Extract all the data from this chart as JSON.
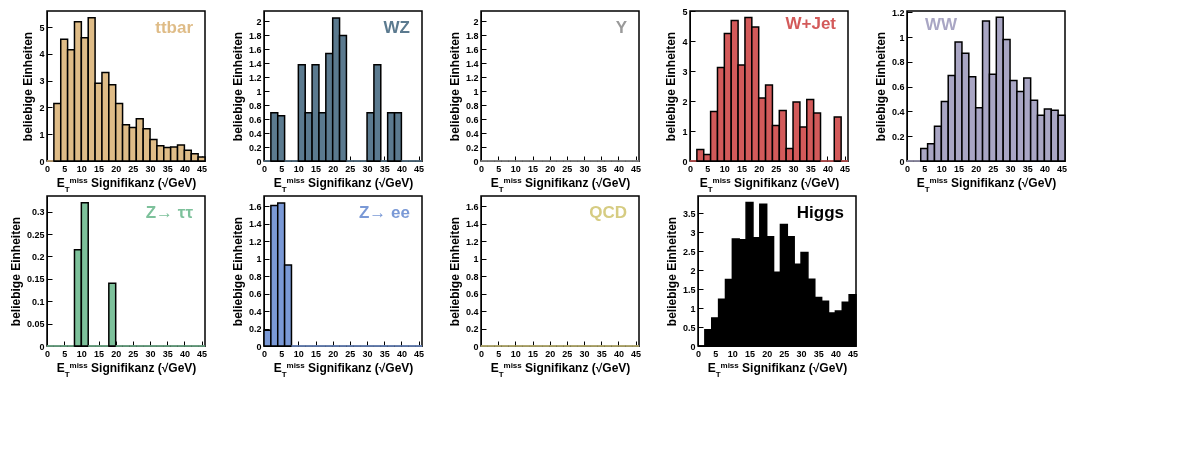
{
  "chart_data": [
    {
      "type": "histogram",
      "title": "ttbar",
      "xlabel": "E$_{T}$$^{miss}$ Signifikanz (√GeV)",
      "ylabel": "beliebige Einheiten",
      "color": "#dfbc87",
      "bins": [
        0,
        2,
        4,
        6,
        8,
        10,
        12,
        14,
        16,
        18,
        20,
        22,
        24,
        26,
        28,
        30,
        32,
        34,
        36,
        38,
        40,
        42,
        44,
        46
      ],
      "values": [
        0,
        2.15,
        4.55,
        4.15,
        5.2,
        4.6,
        5.35,
        2.9,
        3.3,
        2.85,
        2.15,
        1.35,
        1.25,
        1.58,
        1.2,
        0.8,
        0.57,
        0.5,
        0.52,
        0.6,
        0.4,
        0.27,
        0.15
      ],
      "xlim": [
        0,
        46
      ],
      "xticks": [
        0,
        5,
        10,
        15,
        20,
        25,
        30,
        35,
        40,
        45
      ],
      "ylim": [
        0,
        5.6
      ],
      "yticks": [
        0,
        1,
        2,
        3,
        4,
        5
      ]
    },
    {
      "type": "histogram",
      "title": "WZ",
      "xlabel": "E$_{T}$$^{miss}$ Signifikanz (√GeV)",
      "ylabel": "beliebige Einheiten",
      "color": "#5b7a8f",
      "bins": [
        0,
        2,
        4,
        6,
        8,
        10,
        12,
        14,
        16,
        18,
        20,
        22,
        24,
        26,
        28,
        30,
        32,
        34,
        36,
        38,
        40,
        42,
        44,
        46
      ],
      "values": [
        0,
        0.69,
        0.65,
        0,
        0,
        1.38,
        0.69,
        1.38,
        0.69,
        1.54,
        2.05,
        1.8,
        0,
        0,
        0,
        0.69,
        1.38,
        0,
        0.69,
        0.69,
        0,
        0,
        0
      ],
      "xlim": [
        0,
        46
      ],
      "xticks": [
        0,
        5,
        10,
        15,
        20,
        25,
        30,
        35,
        40,
        45
      ],
      "ylim": [
        0,
        2.15
      ],
      "yticks": [
        0,
        0.2,
        0.4,
        0.6,
        0.8,
        1,
        1.2,
        1.4,
        1.6,
        1.8,
        2
      ]
    },
    {
      "type": "histogram",
      "title": "Υ",
      "xlabel": "E$_{T}$$^{miss}$ Signifikanz (√GeV)",
      "ylabel": "beliebige Einheiten",
      "color": "#9a9a9a",
      "bins": [
        0,
        2,
        4,
        6,
        8,
        10,
        12,
        14,
        16,
        18,
        20,
        22,
        24,
        26,
        28,
        30,
        32,
        34,
        36,
        38,
        40,
        42,
        44,
        46
      ],
      "values": [
        0,
        0,
        0,
        0,
        0,
        0,
        0,
        0,
        0,
        0,
        0,
        0,
        0,
        0,
        0,
        0,
        0,
        0,
        0,
        0,
        0,
        0,
        0
      ],
      "xlim": [
        0,
        46
      ],
      "xticks": [
        0,
        5,
        10,
        15,
        20,
        25,
        30,
        35,
        40,
        45
      ],
      "ylim": [
        0,
        2.15
      ],
      "yticks": [
        0,
        0.2,
        0.4,
        0.6,
        0.8,
        1,
        1.2,
        1.4,
        1.6,
        1.8,
        2
      ]
    },
    {
      "type": "histogram",
      "title": "W+Jet",
      "xlabel": "E$_{T}$$^{miss}$ Signifikanz (√GeV)",
      "ylabel": "beliebige Einheiten",
      "color": "#d35a5a",
      "bins": [
        0,
        2,
        4,
        6,
        8,
        10,
        12,
        14,
        16,
        18,
        20,
        22,
        24,
        26,
        28,
        30,
        32,
        34,
        36,
        38,
        40,
        42,
        44,
        46
      ],
      "values": [
        0,
        0.38,
        0.22,
        1.65,
        3.12,
        4.25,
        4.68,
        3.2,
        4.78,
        4.47,
        2.1,
        2.53,
        1.18,
        1.68,
        0.42,
        1.97,
        1.13,
        2.05,
        1.6,
        0,
        0,
        1.47,
        0
      ],
      "xlim": [
        0,
        46
      ],
      "xticks": [
        0,
        5,
        10,
        15,
        20,
        25,
        30,
        35,
        40,
        45
      ],
      "ylim": [
        0,
        5
      ],
      "yticks": [
        0,
        1,
        2,
        3,
        4,
        5
      ]
    },
    {
      "type": "histogram",
      "title": "WW",
      "xlabel": "E$_{T}$$^{miss}$ Signifikanz (√GeV)",
      "ylabel": "beliebige Einheiten",
      "color": "#a9a6c4",
      "bins": [
        0,
        2,
        4,
        6,
        8,
        10,
        12,
        14,
        16,
        18,
        20,
        22,
        24,
        26,
        28,
        30,
        32,
        34,
        36,
        38,
        40,
        42,
        44,
        46
      ],
      "values": [
        0,
        0,
        0.1,
        0.14,
        0.28,
        0.48,
        0.69,
        0.96,
        0.87,
        0.68,
        0.43,
        1.13,
        0.7,
        1.16,
        0.98,
        0.65,
        0.56,
        0.67,
        0.49,
        0.37,
        0.42,
        0.41,
        0.37
      ],
      "xlim": [
        0,
        46
      ],
      "xticks": [
        0,
        5,
        10,
        15,
        20,
        25,
        30,
        35,
        40,
        45
      ],
      "ylim": [
        0,
        1.21
      ],
      "yticks": [
        0,
        0.2,
        0.4,
        0.6,
        0.8,
        1,
        1.2
      ]
    },
    {
      "type": "histogram",
      "title": "Z→ ττ",
      "xlabel": "E$_{T}$$^{miss}$ Signifikanz (√GeV)",
      "ylabel": "beliebige Einheiten",
      "color": "#7dc19b",
      "bins": [
        0,
        2,
        4,
        6,
        8,
        10,
        12,
        14,
        16,
        18,
        20,
        22,
        24,
        26,
        28,
        30,
        32,
        34,
        36,
        38,
        40,
        42,
        44,
        46
      ],
      "values": [
        0,
        0,
        0,
        0,
        0.215,
        0.32,
        0,
        0,
        0,
        0.14,
        0,
        0,
        0,
        0,
        0,
        0,
        0,
        0,
        0,
        0,
        0,
        0,
        0
      ],
      "xlim": [
        0,
        46
      ],
      "xticks": [
        0,
        5,
        10,
        15,
        20,
        25,
        30,
        35,
        40,
        45
      ],
      "ylim": [
        0,
        0.335
      ],
      "yticks": [
        0,
        0.05,
        0.1,
        0.15,
        0.2,
        0.25,
        0.3
      ]
    },
    {
      "type": "histogram",
      "title": "Z→ ee",
      "xlabel": "E$_{T}$$^{miss}$ Signifikanz (√GeV)",
      "ylabel": "beliebige Einheiten",
      "color": "#7a99d6",
      "bins": [
        0,
        2,
        4,
        6,
        8,
        10,
        12,
        14,
        16,
        18,
        20,
        22,
        24,
        26,
        28,
        30,
        32,
        34,
        36,
        38,
        40,
        42,
        44,
        46
      ],
      "values": [
        0.18,
        1.61,
        1.64,
        0.93,
        0,
        0,
        0,
        0,
        0,
        0,
        0,
        0,
        0,
        0,
        0,
        0,
        0,
        0,
        0,
        0,
        0,
        0,
        0
      ],
      "xlim": [
        0,
        46
      ],
      "xticks": [
        0,
        5,
        10,
        15,
        20,
        25,
        30,
        35,
        40,
        45
      ],
      "ylim": [
        0,
        1.72
      ],
      "yticks": [
        0,
        0.2,
        0.4,
        0.6,
        0.8,
        1,
        1.2,
        1.4,
        1.6
      ]
    },
    {
      "type": "histogram",
      "title": "QCD",
      "xlabel": "E$_{T}$$^{miss}$ Signifikanz (√GeV)",
      "ylabel": "beliebige Einheiten",
      "color": "#d6cc82",
      "bins": [
        0,
        2,
        4,
        6,
        8,
        10,
        12,
        14,
        16,
        18,
        20,
        22,
        24,
        26,
        28,
        30,
        32,
        34,
        36,
        38,
        40,
        42,
        44,
        46
      ],
      "values": [
        0,
        0,
        0,
        0,
        0,
        0,
        0,
        0,
        0,
        0,
        0,
        0,
        0,
        0,
        0,
        0,
        0,
        0,
        0,
        0,
        0,
        0,
        0
      ],
      "xlim": [
        0,
        46
      ],
      "xticks": [
        0,
        5,
        10,
        15,
        20,
        25,
        30,
        35,
        40,
        45
      ],
      "ylim": [
        0,
        1.72
      ],
      "yticks": [
        0,
        0.2,
        0.4,
        0.6,
        0.8,
        1,
        1.2,
        1.4,
        1.6
      ]
    },
    {
      "type": "histogram",
      "title": "Higgs",
      "xlabel": "E$_{T}$$^{miss}$ Signifikanz (√GeV)",
      "ylabel": "beliebige Einheiten",
      "color": "#000000",
      "bins": [
        0,
        2,
        4,
        6,
        8,
        10,
        12,
        14,
        16,
        18,
        20,
        22,
        24,
        26,
        28,
        30,
        32,
        34,
        36,
        38,
        40,
        42,
        44,
        46
      ],
      "values": [
        0,
        0.43,
        0.74,
        1.23,
        1.75,
        2.82,
        2.8,
        3.78,
        2.85,
        3.73,
        2.88,
        1.94,
        3.2,
        2.88,
        2.15,
        2.46,
        1.76,
        1.28,
        1.18,
        0.87,
        0.92,
        1.15,
        1.35
      ],
      "xlim": [
        0,
        46
      ],
      "xticks": [
        0,
        5,
        10,
        15,
        20,
        25,
        30,
        35,
        40,
        45
      ],
      "ylim": [
        0,
        3.95
      ],
      "yticks": [
        0,
        0.5,
        1,
        1.5,
        2,
        2.5,
        3,
        3.5
      ]
    }
  ]
}
